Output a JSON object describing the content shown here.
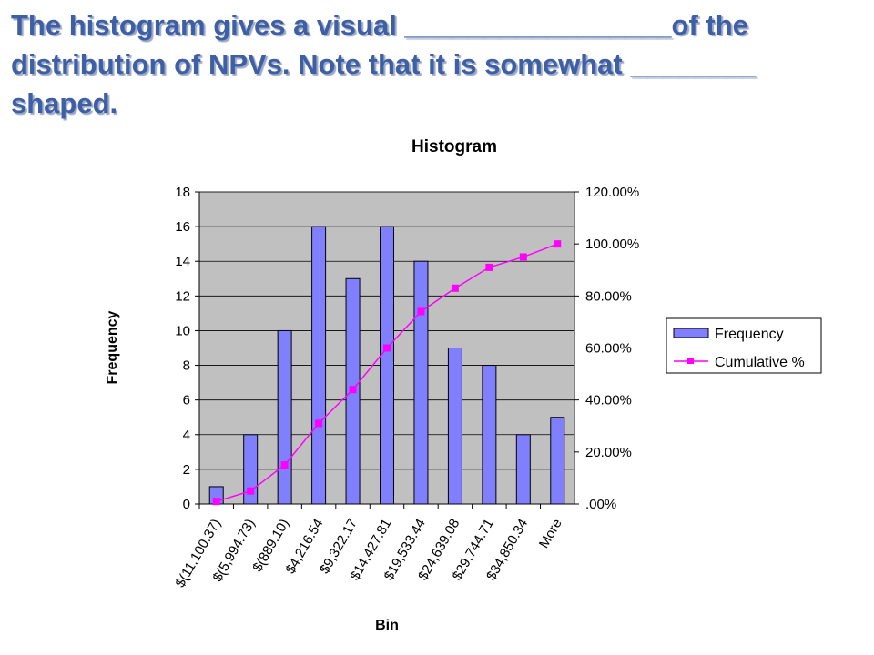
{
  "slide": {
    "heading": "The histogram gives a visual _________________of the distribution of NPVs.  Note that it is somewhat ________ shaped."
  },
  "chart_data": {
    "type": "bar",
    "title": "Histogram",
    "xlabel": "Bin",
    "ylabel": "Frequency",
    "categories": [
      "$(11,100.37)",
      "$(5,994.73)",
      "$(889.10)",
      "$4,216.54",
      "$9,322.17",
      "$14,427.81",
      "$19,533.44",
      "$24,639.08",
      "$29,744.71",
      "$34,850.34",
      "More"
    ],
    "series": [
      {
        "name": "Frequency",
        "type": "bar",
        "axis": "left",
        "color": "#8080ff",
        "values": [
          1,
          4,
          10,
          16,
          13,
          16,
          14,
          9,
          8,
          4,
          5
        ]
      },
      {
        "name": "Cumulative %",
        "type": "line",
        "axis": "right",
        "color": "#ff00ff",
        "values": [
          1.0,
          5.0,
          15.0,
          31.0,
          44.0,
          60.0,
          74.0,
          83.0,
          91.0,
          95.0,
          100.0
        ]
      }
    ],
    "ylim": [
      0,
      18
    ],
    "y_ticks": [
      "0",
      "2",
      "4",
      "6",
      "8",
      "10",
      "12",
      "14",
      "16",
      "18"
    ],
    "y2lim": [
      0,
      120
    ],
    "y2_ticks": [
      ".00%",
      "20.00%",
      "40.00%",
      "60.00%",
      "80.00%",
      "100.00%",
      "120.00%"
    ],
    "plot_background": "#c0c0c0",
    "grid": true,
    "legend": "right"
  }
}
